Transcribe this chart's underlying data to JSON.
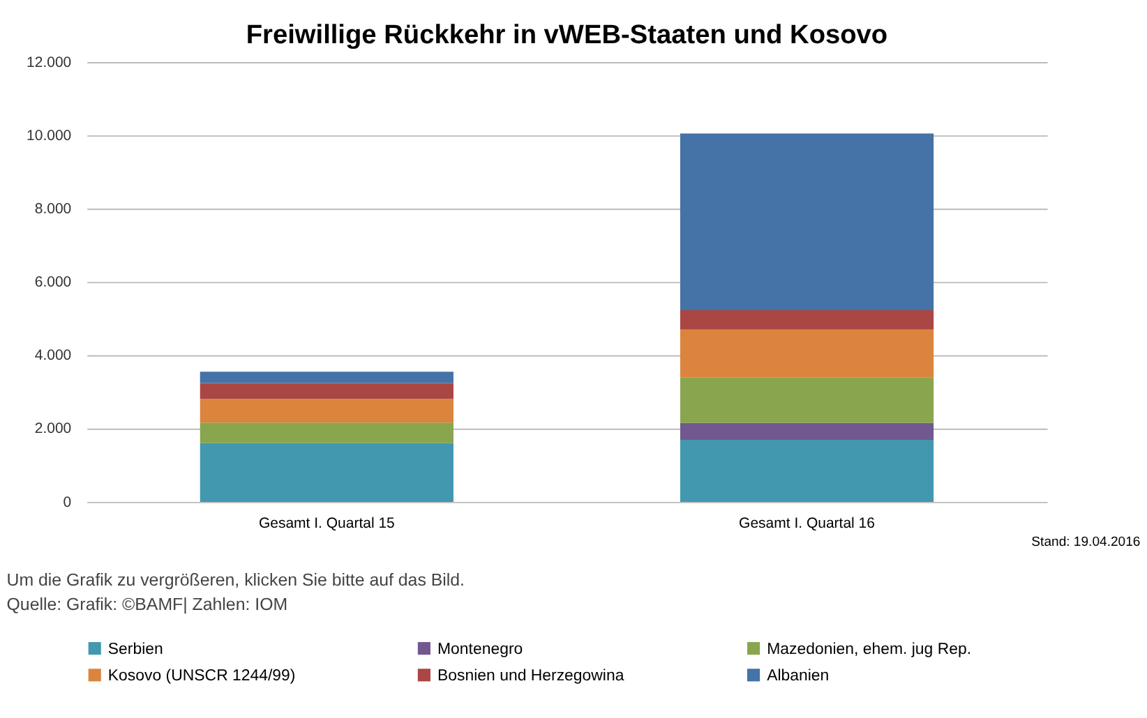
{
  "chart_data": {
    "type": "bar",
    "stacked": true,
    "title": "Freiwillige Rückkehr in vWEB-Staaten und Kosovo",
    "categories": [
      "Gesamt I. Quartal 15",
      "Gesamt I. Quartal 16"
    ],
    "series": [
      {
        "name": "Serbien",
        "color": "#4198af",
        "values": [
          1600,
          1690
        ]
      },
      {
        "name": "Montenegro",
        "color": "#71588f",
        "values": [
          0,
          460
        ]
      },
      {
        "name": "Mazedonien, ehem. jug Rep.",
        "color": "#89a54e",
        "values": [
          560,
          1250
        ]
      },
      {
        "name": "Kosovo (UNSCR 1244/99)",
        "color": "#db843d",
        "values": [
          650,
          1300
        ]
      },
      {
        "name": "Bosnien und Herzegowina",
        "color": "#aa4643",
        "values": [
          430,
          530
        ]
      },
      {
        "name": "Albanien",
        "color": "#4572a7",
        "values": [
          310,
          4820
        ]
      }
    ],
    "ylim": [
      0,
      12000
    ],
    "yticks": [
      {
        "value": 0,
        "label": "0"
      },
      {
        "value": 2000,
        "label": "2.000"
      },
      {
        "value": 4000,
        "label": "4.000"
      },
      {
        "value": 6000,
        "label": "6.000"
      },
      {
        "value": 8000,
        "label": "8.000"
      },
      {
        "value": 10000,
        "label": "10.000"
      },
      {
        "value": 12000,
        "label": "12.000"
      }
    ],
    "grid": "y",
    "legend": "bottom",
    "annotations": [
      "Stand: 19.04.2016",
      "Um die Grafik zu vergrößeren, klicken Sie bitte auf das Bild.",
      "Quelle: Grafik: ©BAMF| Zahlen: IOM"
    ]
  }
}
